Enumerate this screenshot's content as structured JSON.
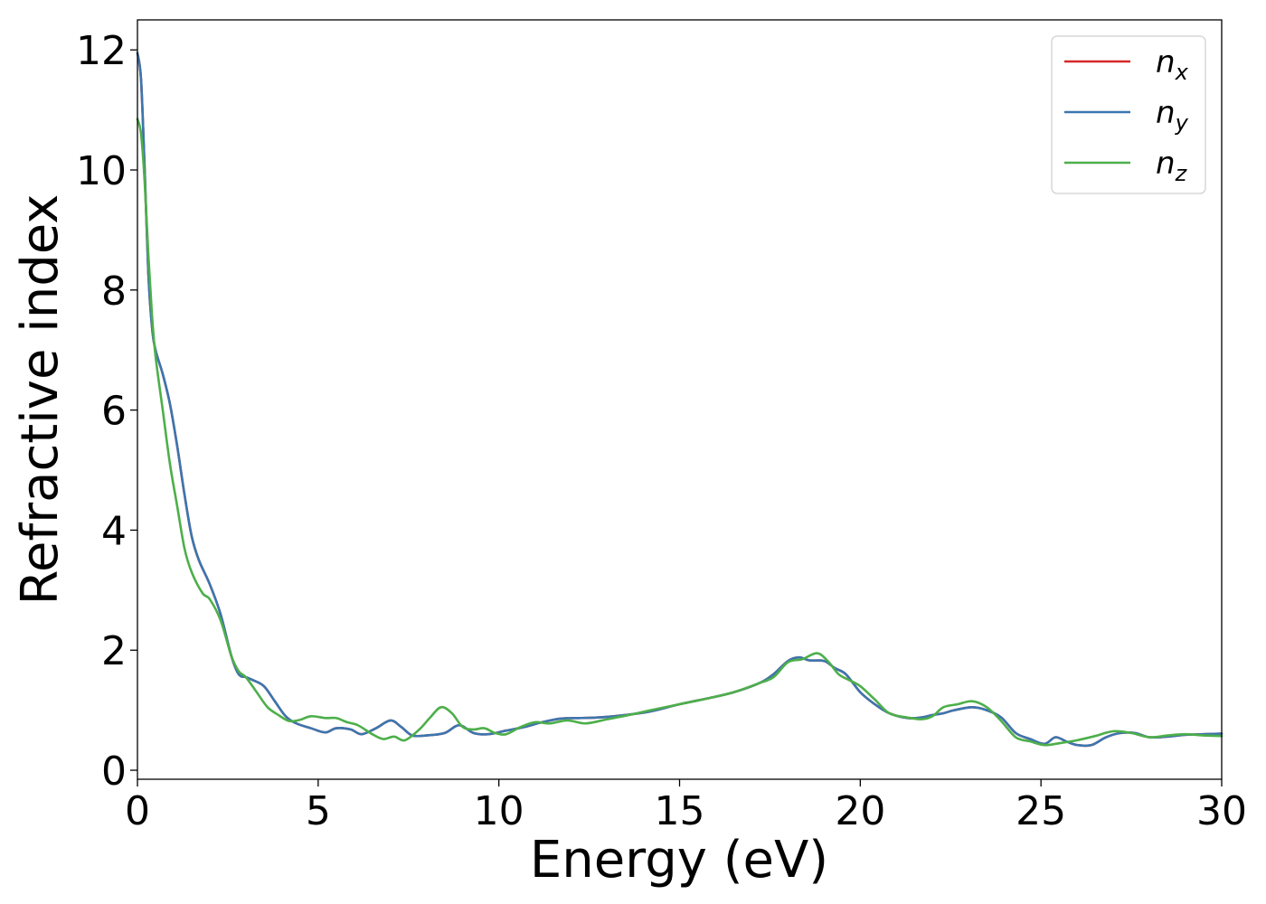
{
  "chart_data": {
    "type": "line",
    "xlabel": "Energy (eV)",
    "ylabel": "Refractive index",
    "xlim": [
      0,
      30
    ],
    "ylim": [
      -0.15,
      12.5
    ],
    "xticks": [
      "0",
      "5",
      "10",
      "15",
      "20",
      "25",
      "30"
    ],
    "yticks": [
      "0",
      "2",
      "4",
      "6",
      "8",
      "10",
      "12"
    ],
    "grid": false,
    "legend_position": "top-right",
    "series": [
      {
        "name": "n",
        "sub": "x",
        "color": "#d62728",
        "x": [
          0,
          0.1,
          0.2,
          0.3,
          0.4,
          0.5,
          0.7,
          0.9,
          1.1,
          1.3,
          1.5,
          1.7,
          2.0,
          2.3,
          2.6,
          2.8,
          3.0,
          3.2,
          3.5,
          3.8,
          4.1,
          4.4,
          4.8,
          5.2,
          5.5,
          5.9,
          6.2,
          6.6,
          7.0,
          7.3,
          7.6,
          8.0,
          8.5,
          8.9,
          9.3,
          9.7,
          10.2,
          10.7,
          11.2,
          11.7,
          12.2,
          12.8,
          13.5,
          14.2,
          15.0,
          15.8,
          16.5,
          17.2,
          17.6,
          18.0,
          18.3,
          18.6,
          19.0,
          19.3,
          19.6,
          20.0,
          20.4,
          20.8,
          21.3,
          21.7,
          22.0,
          22.3,
          22.6,
          23.1,
          23.5,
          23.9,
          24.3,
          24.7,
          25.1,
          25.4,
          25.7,
          26.0,
          26.4,
          26.8,
          27.2,
          27.6,
          28.0,
          28.5,
          29.0,
          29.5,
          30.0
        ],
        "y": [
          11.95,
          11.5,
          10.0,
          8.3,
          7.4,
          7.0,
          6.6,
          6.1,
          5.4,
          4.6,
          3.9,
          3.5,
          3.1,
          2.6,
          1.9,
          1.6,
          1.55,
          1.5,
          1.4,
          1.15,
          0.9,
          0.78,
          0.7,
          0.63,
          0.7,
          0.68,
          0.6,
          0.7,
          0.83,
          0.72,
          0.58,
          0.58,
          0.62,
          0.75,
          0.62,
          0.6,
          0.66,
          0.72,
          0.8,
          0.86,
          0.87,
          0.88,
          0.92,
          0.98,
          1.1,
          1.2,
          1.3,
          1.45,
          1.6,
          1.82,
          1.88,
          1.83,
          1.82,
          1.7,
          1.6,
          1.3,
          1.1,
          0.95,
          0.87,
          0.88,
          0.92,
          0.95,
          1.0,
          1.05,
          1.0,
          0.88,
          0.62,
          0.52,
          0.44,
          0.55,
          0.48,
          0.42,
          0.42,
          0.55,
          0.62,
          0.62,
          0.55,
          0.56,
          0.59,
          0.6,
          0.61
        ]
      },
      {
        "name": "n",
        "sub": "y",
        "color": "#3b76af",
        "x": [
          0,
          0.1,
          0.2,
          0.3,
          0.4,
          0.5,
          0.7,
          0.9,
          1.1,
          1.3,
          1.5,
          1.7,
          2.0,
          2.3,
          2.6,
          2.8,
          3.0,
          3.2,
          3.5,
          3.8,
          4.1,
          4.4,
          4.8,
          5.2,
          5.5,
          5.9,
          6.2,
          6.6,
          7.0,
          7.3,
          7.6,
          8.0,
          8.5,
          8.9,
          9.3,
          9.7,
          10.2,
          10.7,
          11.2,
          11.7,
          12.2,
          12.8,
          13.5,
          14.2,
          15.0,
          15.8,
          16.5,
          17.2,
          17.6,
          18.0,
          18.3,
          18.6,
          19.0,
          19.3,
          19.6,
          20.0,
          20.4,
          20.8,
          21.3,
          21.7,
          22.0,
          22.3,
          22.6,
          23.1,
          23.5,
          23.9,
          24.3,
          24.7,
          25.1,
          25.4,
          25.7,
          26.0,
          26.4,
          26.8,
          27.2,
          27.6,
          28.0,
          28.5,
          29.0,
          29.5,
          30.0
        ],
        "y": [
          11.95,
          11.5,
          10.0,
          8.3,
          7.4,
          7.0,
          6.6,
          6.1,
          5.4,
          4.6,
          3.9,
          3.5,
          3.1,
          2.6,
          1.9,
          1.6,
          1.55,
          1.5,
          1.4,
          1.15,
          0.9,
          0.78,
          0.7,
          0.63,
          0.7,
          0.68,
          0.6,
          0.7,
          0.83,
          0.72,
          0.58,
          0.58,
          0.62,
          0.75,
          0.62,
          0.6,
          0.66,
          0.72,
          0.8,
          0.86,
          0.87,
          0.88,
          0.92,
          0.98,
          1.1,
          1.2,
          1.3,
          1.45,
          1.6,
          1.82,
          1.88,
          1.83,
          1.82,
          1.7,
          1.6,
          1.3,
          1.1,
          0.95,
          0.87,
          0.88,
          0.92,
          0.95,
          1.0,
          1.05,
          1.0,
          0.88,
          0.62,
          0.52,
          0.44,
          0.55,
          0.48,
          0.42,
          0.42,
          0.55,
          0.62,
          0.62,
          0.55,
          0.56,
          0.59,
          0.6,
          0.61
        ]
      },
      {
        "name": "n",
        "sub": "z",
        "color": "#4daf4a",
        "x": [
          0,
          0.1,
          0.2,
          0.3,
          0.4,
          0.5,
          0.7,
          0.9,
          1.1,
          1.3,
          1.5,
          1.8,
          2.0,
          2.3,
          2.6,
          2.8,
          3.0,
          3.3,
          3.6,
          3.9,
          4.2,
          4.5,
          4.8,
          5.2,
          5.5,
          5.8,
          6.1,
          6.5,
          6.8,
          7.1,
          7.4,
          7.8,
          8.1,
          8.4,
          8.7,
          9.0,
          9.3,
          9.6,
          9.9,
          10.2,
          10.6,
          11.0,
          11.4,
          11.9,
          12.4,
          13.0,
          13.6,
          14.2,
          15.0,
          15.8,
          16.5,
          17.2,
          17.6,
          18.0,
          18.4,
          18.8,
          19.1,
          19.4,
          19.7,
          20.0,
          20.4,
          20.8,
          21.3,
          21.7,
          22.0,
          22.3,
          22.7,
          23.1,
          23.5,
          23.9,
          24.3,
          24.7,
          25.1,
          25.5,
          26.0,
          26.5,
          27.0,
          27.5,
          28.0,
          28.5,
          29.0,
          29.5,
          30.0
        ],
        "y": [
          10.85,
          10.6,
          9.8,
          8.6,
          7.6,
          6.9,
          6.0,
          5.1,
          4.4,
          3.7,
          3.3,
          2.95,
          2.85,
          2.5,
          1.9,
          1.65,
          1.55,
          1.3,
          1.05,
          0.92,
          0.82,
          0.84,
          0.9,
          0.87,
          0.87,
          0.8,
          0.75,
          0.6,
          0.52,
          0.56,
          0.5,
          0.68,
          0.88,
          1.05,
          0.95,
          0.72,
          0.68,
          0.7,
          0.62,
          0.6,
          0.72,
          0.8,
          0.78,
          0.83,
          0.78,
          0.85,
          0.92,
          1.0,
          1.1,
          1.2,
          1.3,
          1.45,
          1.55,
          1.8,
          1.85,
          1.95,
          1.82,
          1.6,
          1.5,
          1.4,
          1.18,
          0.95,
          0.88,
          0.85,
          0.9,
          1.05,
          1.1,
          1.15,
          1.05,
          0.82,
          0.55,
          0.48,
          0.42,
          0.45,
          0.5,
          0.57,
          0.65,
          0.62,
          0.55,
          0.58,
          0.6,
          0.58,
          0.57
        ]
      }
    ]
  }
}
